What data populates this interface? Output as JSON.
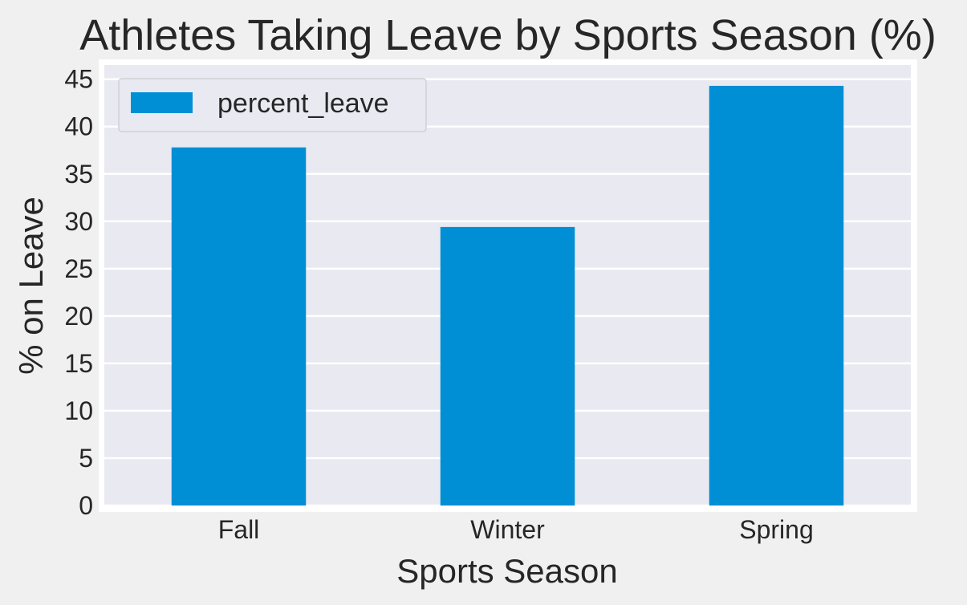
{
  "chart_data": {
    "type": "bar",
    "title": "Athletes Taking Leave by Sports Season (%)",
    "xlabel": "Sports Season",
    "ylabel": "% on Leave",
    "categories": [
      "Fall",
      "Winter",
      "Spring"
    ],
    "series": [
      {
        "name": "percent_leave",
        "values": [
          37.8,
          29.4,
          44.3
        ],
        "color": "#008fd5"
      }
    ],
    "ylim": [
      0,
      46.5
    ],
    "yticks": [
      0,
      5,
      10,
      15,
      20,
      25,
      30,
      35,
      40,
      45
    ],
    "grid": true,
    "legend_position": "top-left",
    "colors": {
      "plot_background": "#e9e9f1",
      "figure_background": "#f0f0f0",
      "grid": "#ffffff",
      "text": "#262626"
    }
  }
}
